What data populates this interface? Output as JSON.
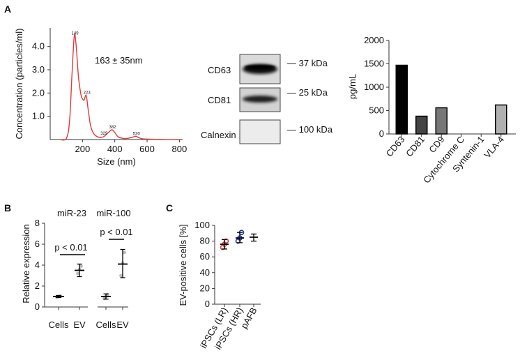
{
  "panels": {
    "A": "A",
    "B": "B",
    "C": "C"
  },
  "chart_data": [
    {
      "id": "nta",
      "type": "line",
      "xlabel": "Size (nm)",
      "ylabel": "Concentration (particles/ml)",
      "xlim": [
        0,
        820
      ],
      "ylim": [
        0,
        4.8
      ],
      "xticks": [
        200,
        400,
        600,
        800
      ],
      "yticks": [
        1.0,
        2.0,
        3.0,
        4.0
      ],
      "annotation": "163 ± 35nm",
      "peak_labels": [
        {
          "x": 149,
          "y": 4.45,
          "label": "149"
        },
        {
          "x": 223,
          "y": 1.9,
          "label": "223"
        },
        {
          "x": 329,
          "y": 0.15,
          "label": "329"
        },
        {
          "x": 382,
          "y": 0.42,
          "label": "382"
        },
        {
          "x": 530,
          "y": 0.14,
          "label": "530"
        }
      ],
      "series": [
        {
          "name": "concentration",
          "color": "#e03a3a",
          "x": [
            60,
            100,
            120,
            135,
            149,
            160,
            175,
            190,
            200,
            210,
            223,
            235,
            250,
            270,
            300,
            330,
            360,
            382,
            400,
            420,
            450,
            480,
            510,
            530,
            550,
            570,
            600,
            650,
            700,
            750,
            800
          ],
          "y": [
            0.0,
            0.05,
            0.8,
            2.8,
            4.45,
            4.1,
            2.7,
            1.95,
            1.75,
            1.7,
            1.9,
            1.3,
            0.6,
            0.25,
            0.1,
            0.12,
            0.3,
            0.42,
            0.3,
            0.12,
            0.05,
            0.05,
            0.1,
            0.14,
            0.08,
            0.03,
            0.02,
            0.01,
            0.01,
            0.0,
            0.0
          ]
        }
      ]
    },
    {
      "id": "markers",
      "type": "bar",
      "ylabel": "pg/mL",
      "ylim": [
        0,
        2000
      ],
      "yticks": [
        0,
        500,
        1000,
        1500,
        2000
      ],
      "categories": [
        "CD63",
        "CD81",
        "CD9",
        "Cytochrome C",
        "Syntenin-1",
        "VLA-4"
      ],
      "values": [
        1470,
        380,
        560,
        0,
        0,
        620
      ],
      "colors": [
        "#000000",
        "#444444",
        "#777777",
        "#aaaaaa",
        "#bbbbbb",
        "#b0b0b0"
      ]
    },
    {
      "id": "mirna",
      "type": "scatter",
      "ylabel": "Relative expression",
      "ylim": [
        0,
        8
      ],
      "yticks": [
        0,
        2,
        4,
        6,
        8
      ],
      "categories": [
        "Cells",
        "EV",
        "Cells",
        "EV"
      ],
      "groups": [
        {
          "title": "miR-23",
          "pvalue": "p < 0.01",
          "cells": {
            "mean": 1.0,
            "low": 0.9,
            "high": 1.1,
            "points": [
              0.95,
              1.0,
              1.05
            ]
          },
          "ev": {
            "mean": 3.5,
            "low": 2.9,
            "high": 4.1,
            "points": [
              3.2,
              3.6,
              3.9
            ]
          }
        },
        {
          "title": "miR-100",
          "pvalue": "p < 0.01",
          "cells": {
            "mean": 1.0,
            "low": 0.75,
            "high": 1.25,
            "points": [
              0.8,
              1.0,
              1.2
            ]
          },
          "ev": {
            "mean": 4.1,
            "low": 2.8,
            "high": 5.5,
            "points": [
              3.0,
              4.2,
              5.2
            ]
          }
        }
      ]
    },
    {
      "id": "evpos",
      "type": "scatter",
      "ylabel": "EV-positive cells [%]",
      "ylim": [
        0,
        100
      ],
      "yticks": [
        0,
        20,
        40,
        60,
        80,
        100
      ],
      "categories": [
        "iPSCs (LR)",
        "iPSCs (HR)",
        "pAFB"
      ],
      "groups": [
        {
          "name": "iPSCs (LR)",
          "mean": 76,
          "low": 70,
          "high": 82,
          "points": [
            72,
            76,
            80
          ],
          "color": "#d04040"
        },
        {
          "name": "iPSCs (HR)",
          "mean": 84,
          "low": 78,
          "high": 91,
          "points": [
            80,
            84,
            91
          ],
          "color": "#2030a0"
        },
        {
          "name": "pAFB",
          "mean": 85,
          "low": 80,
          "high": 89,
          "points": [],
          "color": "#000000"
        }
      ]
    }
  ],
  "blot": {
    "bands": [
      {
        "protein": "CD63",
        "size": "— 37 kDa"
      },
      {
        "protein": "CD81",
        "size": "— 25 kDa"
      },
      {
        "protein": "Calnexin",
        "size": "— 100 kDa"
      }
    ]
  }
}
